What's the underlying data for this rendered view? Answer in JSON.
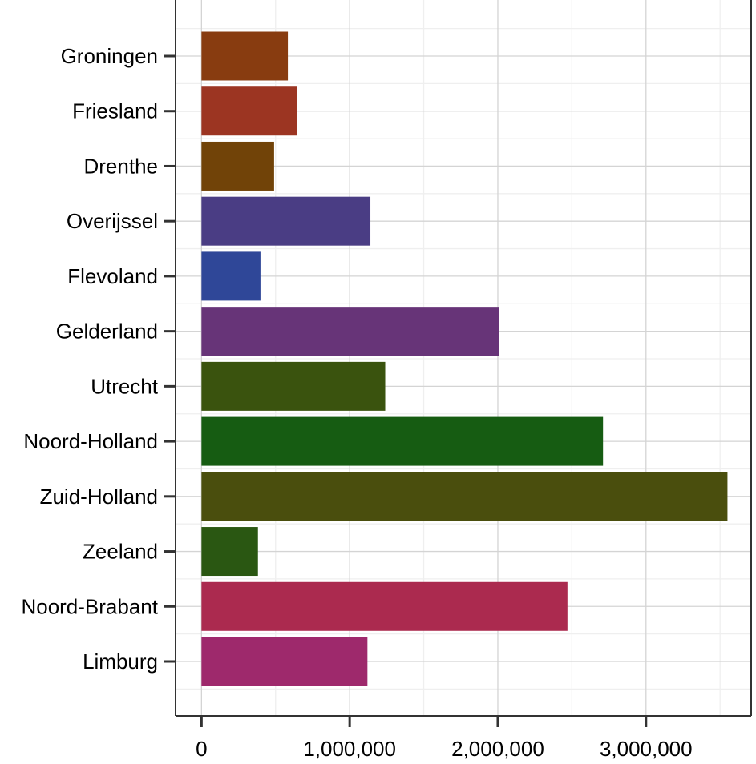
{
  "chart_data": {
    "type": "bar",
    "orientation": "horizontal",
    "title": "",
    "xlabel": "",
    "ylabel": "",
    "categories": [
      "Groningen",
      "Friesland",
      "Drenthe",
      "Overijssel",
      "Flevoland",
      "Gelderland",
      "Utrecht",
      "Noord-Holland",
      "Zuid-Holland",
      "Zeeland",
      "Noord-Brabant",
      "Limburg"
    ],
    "values": [
      583000,
      647000,
      490000,
      1140000,
      398000,
      2010000,
      1240000,
      2710000,
      3550000,
      381000,
      2470000,
      1120000
    ],
    "colors": [
      "#883c10",
      "#9c3522",
      "#714308",
      "#4a3d84",
      "#2f4798",
      "#673478",
      "#3a530e",
      "#165c12",
      "#4a4e0d",
      "#2a5712",
      "#ab2a4f",
      "#9e296c"
    ],
    "x_ticks": [
      0,
      1000000,
      2000000,
      3000000
    ],
    "x_tick_labels": [
      "0",
      "1,000,000",
      "2,000,000",
      "3,000,000"
    ],
    "xlim": [
      -175000,
      3710000
    ],
    "grid": true,
    "legend": "none"
  }
}
